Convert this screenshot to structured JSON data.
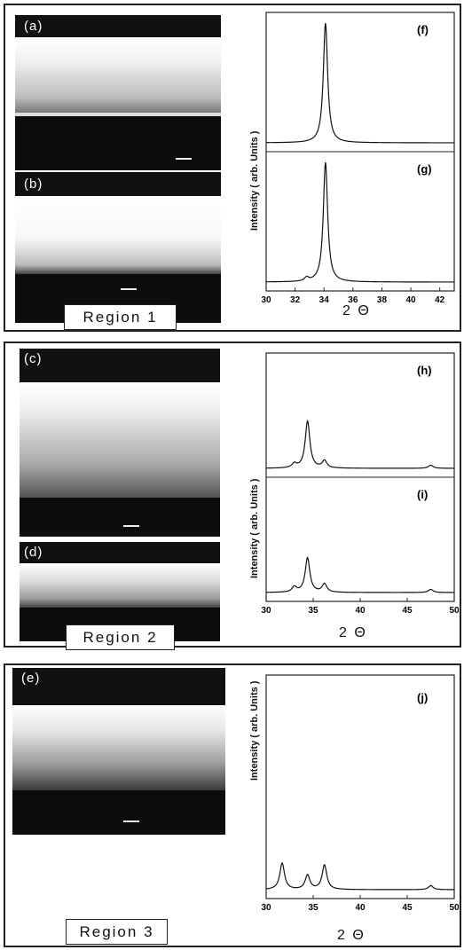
{
  "regions": [
    {
      "label": "Region 1",
      "images": [
        "(a)",
        "(b)"
      ]
    },
    {
      "label": "Region 2",
      "images": [
        "(c)",
        "(d)"
      ]
    },
    {
      "label": "Region 3",
      "images": [
        "(e)"
      ]
    }
  ],
  "ylabel": "Intensity ( arb. Units )",
  "xlabel": "2 Θ",
  "chart_data": [
    {
      "type": "line",
      "panels": [
        "(f)",
        "(g)"
      ],
      "xlim": [
        30,
        43
      ],
      "xticks": [
        30,
        32,
        34,
        36,
        38,
        40,
        42
      ],
      "peaks": [
        {
          "label": "(f)",
          "points": [
            [
              34.1,
              1.0
            ]
          ]
        },
        {
          "label": "(g)",
          "points": [
            [
              32.8,
              0.03
            ],
            [
              34.1,
              1.0
            ]
          ]
        }
      ]
    },
    {
      "type": "line",
      "panels": [
        "(h)",
        "(i)"
      ],
      "xlim": [
        30,
        50
      ],
      "xticks": [
        30,
        35,
        40,
        45,
        50
      ],
      "peaks": [
        {
          "label": "(h)",
          "points": [
            [
              33.0,
              0.04
            ],
            [
              34.4,
              0.45
            ],
            [
              36.2,
              0.07
            ],
            [
              47.5,
              0.03
            ]
          ]
        },
        {
          "label": "(i)",
          "points": [
            [
              33.0,
              0.05
            ],
            [
              34.4,
              0.33
            ],
            [
              36.2,
              0.08
            ],
            [
              47.5,
              0.03
            ]
          ]
        }
      ]
    },
    {
      "type": "line",
      "panels": [
        "(j)"
      ],
      "xlim": [
        30,
        50
      ],
      "xticks": [
        30,
        35,
        40,
        45,
        50
      ],
      "peaks": [
        {
          "label": "(j)",
          "points": [
            [
              31.7,
              0.13
            ],
            [
              34.4,
              0.07
            ],
            [
              36.2,
              0.12
            ],
            [
              47.5,
              0.02
            ]
          ]
        }
      ]
    }
  ]
}
